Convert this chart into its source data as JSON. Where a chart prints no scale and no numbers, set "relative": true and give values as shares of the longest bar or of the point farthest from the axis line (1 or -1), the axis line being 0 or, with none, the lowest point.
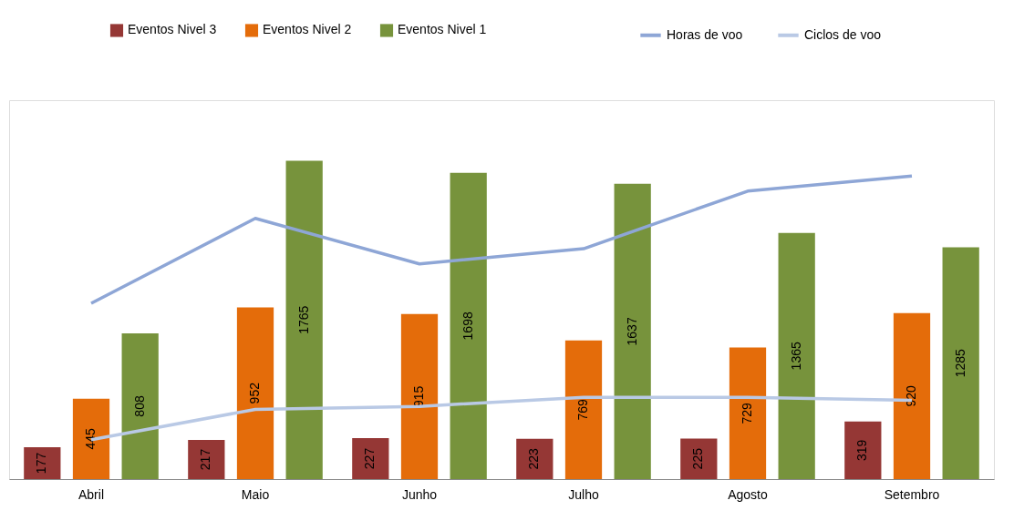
{
  "chart_data": [
    {
      "type": "bar",
      "categories": [
        "Abril",
        "Maio",
        "Junho",
        "Julho",
        "Agosto",
        "Setembro"
      ],
      "series": [
        {
          "name": "Eventos Nivel 3",
          "color": "#953735",
          "values": [
            177,
            217,
            227,
            223,
            225,
            319
          ]
        },
        {
          "name": "Eventos Nivel 2",
          "color": "#e46c0a",
          "values": [
            445,
            952,
            915,
            769,
            729,
            920
          ]
        },
        {
          "name": "Eventos Nivel 1",
          "color": "#77933c",
          "values": [
            808,
            1765,
            1698,
            1637,
            1365,
            1285
          ]
        }
      ],
      "data_labels": true,
      "legend": "top",
      "grid": false
    },
    {
      "type": "line",
      "relative": true,
      "categories": [
        "Abril",
        "Maio",
        "Junho",
        "Julho",
        "Agosto",
        "Setembro"
      ],
      "series": [
        {
          "name": "Horas de voo",
          "color": "#8ea6d6",
          "values": [
            0.58,
            0.86,
            0.71,
            0.76,
            0.95,
            1.0
          ]
        },
        {
          "name": "Ciclos de voo",
          "color": "#b9c9e5",
          "values": [
            0.13,
            0.23,
            0.24,
            0.27,
            0.27,
            0.26
          ]
        }
      ],
      "legend": "top",
      "grid": false,
      "tick_labels": false
    }
  ]
}
